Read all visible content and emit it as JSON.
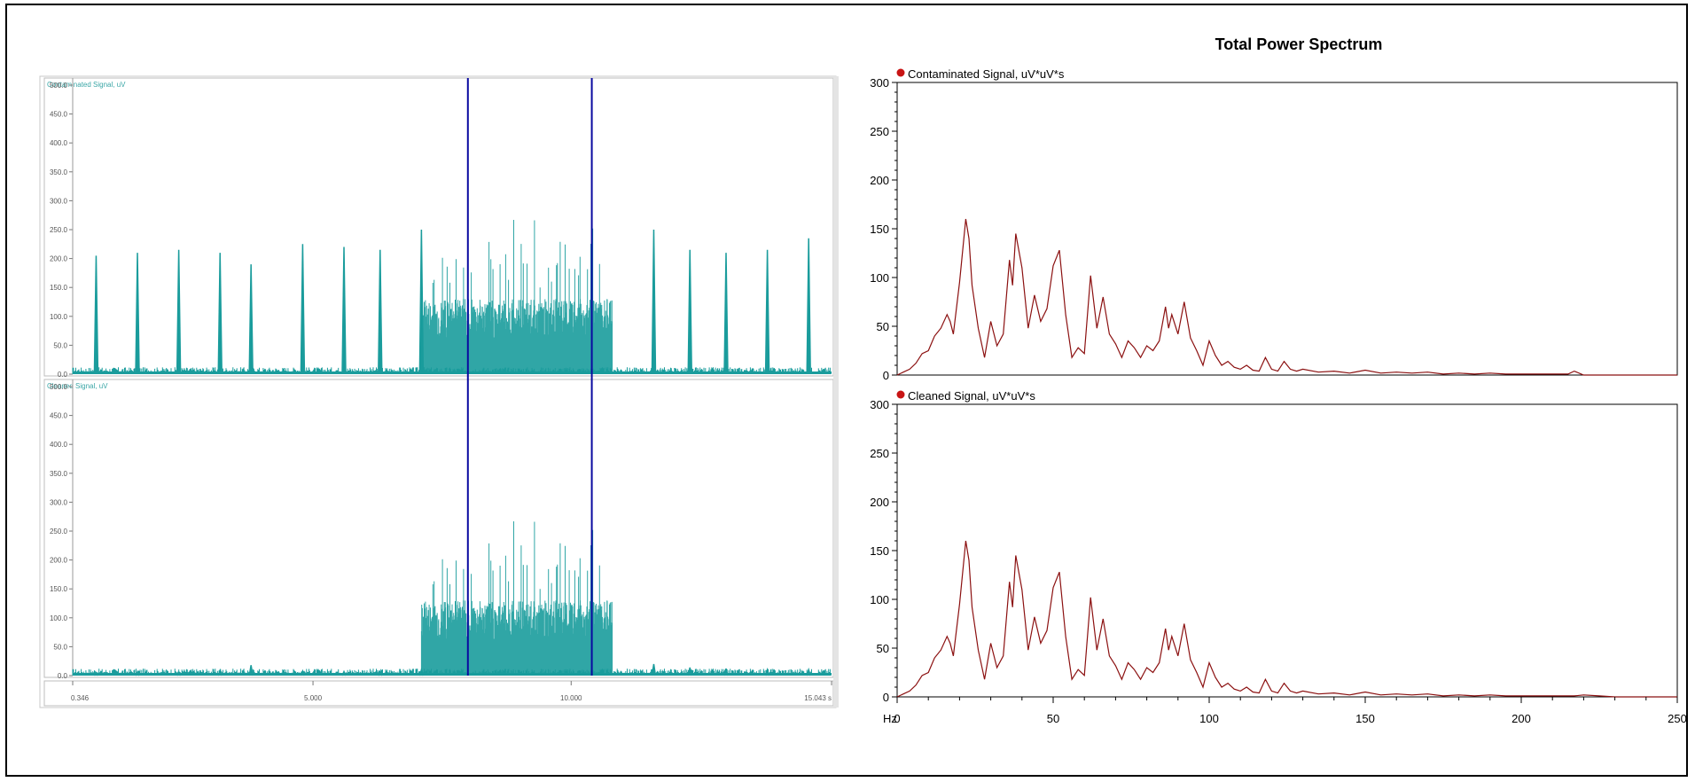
{
  "eeg_viewer": {
    "channels": [
      {
        "label": "Contaminated Signal, uV"
      },
      {
        "label": "Cleaned Signal, uV"
      }
    ],
    "y_ticks": [
      "0.0",
      "50.0",
      "100.0",
      "150.0",
      "200.0",
      "250.0",
      "300.0",
      "350.0",
      "400.0",
      "450.0",
      "500.0"
    ],
    "time_ticks": [
      "0.346",
      "5.000",
      "10.000",
      "15.043 s"
    ],
    "time_range": [
      0.346,
      15.043
    ],
    "y_range": [
      0,
      500
    ],
    "cursor_times": [
      8.0,
      10.4
    ],
    "colors": {
      "trace": "#1a9c9c",
      "cursor": "#0a0aa0"
    },
    "spikes": {
      "times": [
        0.8,
        1.6,
        2.4,
        3.2,
        3.8,
        4.8,
        5.6,
        6.3,
        7.1,
        11.6,
        12.3,
        13.0,
        13.8,
        14.6
      ],
      "contaminated_heights": [
        205,
        210,
        215,
        210,
        190,
        225,
        220,
        215,
        250,
        250,
        215,
        210,
        215,
        235
      ],
      "cleaned_heights": [
        5,
        6,
        5,
        9,
        18,
        8,
        7,
        6,
        10,
        20,
        14,
        12,
        10,
        10
      ]
    },
    "burst": {
      "start": 7.1,
      "end": 10.8
    }
  },
  "spectrum": {
    "title": "Total Power Spectrum",
    "x_unit": "Hz",
    "x_ticks": [
      0,
      50,
      100,
      150,
      200,
      250
    ],
    "y_ticks": [
      0,
      50,
      100,
      150,
      200,
      250,
      300
    ],
    "line_color": "#8b1010",
    "legend_dot_color": "#c81414"
  },
  "chart_data": [
    {
      "type": "line",
      "title": "Contaminated Signal, uV*uV*s",
      "xlabel": "Hz",
      "xlim": [
        0,
        250
      ],
      "ylim": [
        0,
        300
      ],
      "x": [
        0,
        2,
        4,
        6,
        8,
        10,
        12,
        14,
        16,
        17,
        18,
        20,
        22,
        23,
        24,
        26,
        28,
        30,
        32,
        34,
        36,
        37,
        38,
        40,
        42,
        44,
        46,
        48,
        50,
        52,
        54,
        56,
        58,
        60,
        62,
        64,
        66,
        68,
        70,
        72,
        74,
        76,
        78,
        80,
        82,
        84,
        86,
        87,
        88,
        90,
        92,
        94,
        96,
        98,
        100,
        102,
        104,
        106,
        108,
        110,
        112,
        114,
        116,
        118,
        120,
        122,
        124,
        126,
        128,
        130,
        135,
        140,
        145,
        150,
        155,
        160,
        165,
        170,
        175,
        180,
        185,
        190,
        195,
        200,
        205,
        210,
        215,
        217,
        220,
        225,
        230,
        240,
        250
      ],
      "y": [
        0,
        3,
        6,
        12,
        22,
        25,
        40,
        48,
        62,
        55,
        42,
        95,
        160,
        140,
        92,
        48,
        18,
        55,
        30,
        42,
        118,
        92,
        145,
        110,
        48,
        82,
        55,
        68,
        112,
        128,
        62,
        18,
        28,
        22,
        102,
        48,
        80,
        42,
        32,
        18,
        35,
        28,
        18,
        30,
        25,
        35,
        70,
        48,
        62,
        42,
        75,
        38,
        25,
        10,
        35,
        20,
        10,
        14,
        8,
        6,
        10,
        5,
        4,
        18,
        6,
        4,
        14,
        6,
        4,
        6,
        3,
        4,
        2,
        5,
        2,
        3,
        2,
        3,
        1,
        2,
        1,
        2,
        1,
        1,
        1,
        1,
        1,
        4,
        0,
        0,
        0,
        0,
        0
      ],
      "series": [
        {
          "name": "Contaminated Signal, uV*uV*s"
        }
      ]
    },
    {
      "type": "line",
      "title": "Cleaned Signal, uV*uV*s",
      "xlabel": "Hz",
      "xlim": [
        0,
        250
      ],
      "ylim": [
        0,
        300
      ],
      "x": [
        0,
        2,
        4,
        6,
        8,
        10,
        12,
        14,
        16,
        17,
        18,
        20,
        22,
        23,
        24,
        26,
        28,
        30,
        32,
        34,
        36,
        37,
        38,
        40,
        42,
        44,
        46,
        48,
        50,
        52,
        54,
        56,
        58,
        60,
        62,
        64,
        66,
        68,
        70,
        72,
        74,
        76,
        78,
        80,
        82,
        84,
        86,
        87,
        88,
        90,
        92,
        94,
        96,
        98,
        100,
        102,
        104,
        106,
        108,
        110,
        112,
        114,
        116,
        118,
        120,
        122,
        124,
        126,
        128,
        130,
        135,
        140,
        145,
        150,
        155,
        160,
        165,
        170,
        175,
        180,
        185,
        190,
        195,
        200,
        205,
        210,
        215,
        217,
        220,
        225,
        230,
        240,
        250
      ],
      "y": [
        0,
        3,
        6,
        12,
        22,
        25,
        40,
        48,
        62,
        55,
        42,
        95,
        160,
        140,
        92,
        48,
        18,
        55,
        30,
        42,
        118,
        92,
        145,
        110,
        48,
        82,
        55,
        68,
        112,
        128,
        62,
        18,
        28,
        22,
        102,
        48,
        80,
        42,
        32,
        18,
        35,
        28,
        18,
        30,
        25,
        35,
        70,
        48,
        62,
        42,
        75,
        38,
        25,
        10,
        35,
        20,
        10,
        14,
        8,
        6,
        10,
        5,
        4,
        18,
        6,
        4,
        14,
        6,
        4,
        6,
        3,
        4,
        2,
        5,
        2,
        3,
        2,
        3,
        1,
        2,
        1,
        2,
        1,
        1,
        1,
        1,
        1,
        1,
        2,
        1,
        0,
        0,
        0
      ],
      "series": [
        {
          "name": "Cleaned Signal, uV*uV*s"
        }
      ]
    }
  ]
}
